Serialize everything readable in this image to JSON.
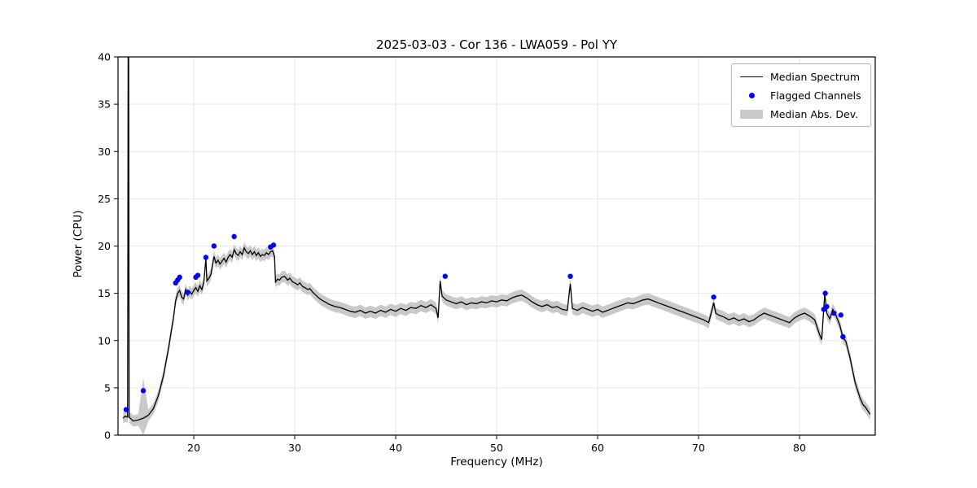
{
  "colors": {
    "line": "#000000",
    "flagged": "#0000ff",
    "band": "#bcbcbc",
    "grid": "#e9e9e9"
  },
  "chart_data": {
    "type": "line",
    "title": "2025-03-03 - Cor 136 - LWA059 - Pol YY",
    "xlabel": "Frequency (MHz)",
    "ylabel": "Power (CPU)",
    "xlim": [
      12.5,
      87.5
    ],
    "ylim": [
      0,
      40
    ],
    "xticks": [
      20,
      30,
      40,
      50,
      60,
      70,
      80
    ],
    "yticks": [
      0,
      5,
      10,
      15,
      20,
      25,
      30,
      35,
      40
    ],
    "grid": true,
    "legend_position": "upper right",
    "legend_entries": [
      {
        "label": "Median Spectrum",
        "marker": "line"
      },
      {
        "label": "Flagged Channels",
        "marker": "dot"
      },
      {
        "label": "Median Abs. Dev.",
        "marker": "band"
      }
    ],
    "series": [
      {
        "name": "Median Spectrum",
        "type": "line",
        "color": "#000000",
        "x": [
          13.0,
          13.2,
          13.45,
          13.5,
          13.55,
          13.6,
          14.0,
          14.5,
          15.0,
          15.5,
          16.0,
          16.5,
          17.0,
          17.5,
          18.0,
          18.2,
          18.4,
          18.6,
          18.8,
          19.0,
          19.2,
          19.4,
          19.6,
          19.8,
          20.0,
          20.2,
          20.4,
          20.6,
          20.8,
          21.0,
          21.2,
          21.3,
          21.5,
          21.7,
          22.0,
          22.2,
          22.4,
          22.6,
          22.8,
          23.0,
          23.2,
          23.4,
          23.6,
          23.8,
          24.0,
          24.2,
          24.4,
          24.6,
          24.8,
          25.0,
          25.2,
          25.4,
          25.6,
          25.8,
          26.0,
          26.2,
          26.4,
          26.6,
          26.8,
          27.0,
          27.2,
          27.4,
          27.6,
          27.8,
          28.0,
          28.1,
          28.3,
          28.5,
          28.7,
          29.0,
          29.3,
          29.5,
          29.8,
          30.0,
          30.3,
          30.5,
          30.8,
          31.0,
          31.3,
          31.5,
          31.8,
          32.0,
          32.3,
          32.5,
          32.8,
          33.0,
          33.3,
          33.5,
          34.0,
          34.5,
          35.0,
          35.5,
          36.0,
          36.5,
          37.0,
          37.5,
          38.0,
          38.5,
          39.0,
          39.5,
          40.0,
          40.5,
          41.0,
          41.5,
          42.0,
          42.5,
          43.0,
          43.5,
          44.0,
          44.2,
          44.4,
          44.6,
          45.0,
          45.5,
          46.0,
          46.5,
          47.0,
          47.5,
          48.0,
          48.5,
          49.0,
          49.5,
          50.0,
          50.5,
          51.0,
          51.5,
          52.0,
          52.5,
          53.0,
          53.5,
          54.0,
          54.5,
          55.0,
          55.5,
          56.0,
          56.5,
          57.0,
          57.3,
          57.5,
          58.0,
          58.5,
          59.0,
          59.5,
          60.0,
          60.5,
          61.0,
          61.5,
          62.0,
          62.5,
          63.0,
          63.5,
          64.0,
          64.5,
          65.0,
          65.5,
          66.0,
          66.5,
          67.0,
          67.5,
          68.0,
          68.5,
          69.0,
          69.5,
          70.0,
          70.5,
          71.0,
          71.3,
          71.5,
          71.7,
          72.0,
          72.5,
          73.0,
          73.5,
          74.0,
          74.5,
          75.0,
          75.5,
          76.0,
          76.5,
          77.0,
          77.5,
          78.0,
          78.5,
          79.0,
          79.5,
          80.0,
          80.5,
          81.0,
          81.5,
          82.0,
          82.2,
          82.5,
          82.7,
          83.0,
          83.3,
          83.6,
          84.0,
          84.3,
          84.6,
          85.0,
          85.5,
          86.0,
          86.3,
          86.5,
          87.0
        ],
        "y": [
          1.8,
          2.0,
          1.9,
          41,
          41,
          1.9,
          1.5,
          1.6,
          1.8,
          2.1,
          2.8,
          4.2,
          6.3,
          9.2,
          12.5,
          14.2,
          15.0,
          15.3,
          14.6,
          14.4,
          15.4,
          14.8,
          15.2,
          14.9,
          15.3,
          15.6,
          15.2,
          15.8,
          15.4,
          16.2,
          18.7,
          16.3,
          16.6,
          17.0,
          18.9,
          18.2,
          18.5,
          18.1,
          18.4,
          18.7,
          18.3,
          18.8,
          19.1,
          18.8,
          19.6,
          19.2,
          19.0,
          19.4,
          19.1,
          19.8,
          19.4,
          19.2,
          19.5,
          19.1,
          19.4,
          19.0,
          19.3,
          18.9,
          19.1,
          19.0,
          19.3,
          19.1,
          19.4,
          19.5,
          18.9,
          16.2,
          16.5,
          16.4,
          16.7,
          16.8,
          16.4,
          16.6,
          16.2,
          16.1,
          15.9,
          16.1,
          15.7,
          15.6,
          15.4,
          15.5,
          15.1,
          14.9,
          14.6,
          14.4,
          14.2,
          14.1,
          13.9,
          13.8,
          13.6,
          13.5,
          13.3,
          13.1,
          13.0,
          13.2,
          12.9,
          13.1,
          12.9,
          13.2,
          13.0,
          13.3,
          13.1,
          13.4,
          13.2,
          13.5,
          13.4,
          13.7,
          13.5,
          13.8,
          13.4,
          12.4,
          16.3,
          14.7,
          14.3,
          14.1,
          13.9,
          14.1,
          13.8,
          14.0,
          13.9,
          14.1,
          14.0,
          14.2,
          14.1,
          14.3,
          14.2,
          14.5,
          14.7,
          14.8,
          14.5,
          14.1,
          13.8,
          13.6,
          13.8,
          13.5,
          13.6,
          13.3,
          13.2,
          16.0,
          13.4,
          13.2,
          13.5,
          13.3,
          13.1,
          13.3,
          13.0,
          13.2,
          13.4,
          13.6,
          13.8,
          14.0,
          13.9,
          14.1,
          14.3,
          14.4,
          14.2,
          14.0,
          13.8,
          13.6,
          13.4,
          13.2,
          13.0,
          12.8,
          12.6,
          12.4,
          12.2,
          11.9,
          13.1,
          14.0,
          12.9,
          12.7,
          12.5,
          12.2,
          12.4,
          12.1,
          12.3,
          12.0,
          12.2,
          12.6,
          12.9,
          12.7,
          12.5,
          12.3,
          12.1,
          11.9,
          12.4,
          12.7,
          12.9,
          12.6,
          12.2,
          10.6,
          10.1,
          15.0,
          12.9,
          12.3,
          13.3,
          12.7,
          11.6,
          10.3,
          9.9,
          8.2,
          5.6,
          3.9,
          3.2,
          3.0,
          2.2
        ]
      },
      {
        "name": "Flagged Channels",
        "type": "scatter",
        "color": "#0000ff",
        "x": [
          13.3,
          15.0,
          18.2,
          18.4,
          18.6,
          19.4,
          20.2,
          20.4,
          21.2,
          22.0,
          24.0,
          27.6,
          27.9,
          44.9,
          57.3,
          71.5,
          82.4,
          82.55,
          82.7,
          83.4,
          84.1,
          84.3
        ],
        "y": [
          2.7,
          4.7,
          16.1,
          16.4,
          16.7,
          15.1,
          16.7,
          16.9,
          18.8,
          20.0,
          21.0,
          19.9,
          20.1,
          16.8,
          16.8,
          14.6,
          13.3,
          15.0,
          13.6,
          12.9,
          12.7,
          10.4
        ]
      },
      {
        "name": "Median Abs. Dev.",
        "type": "band",
        "color": "#bcbcbc",
        "mad_default": 0.6,
        "mad_overrides": [
          {
            "x": 15.0,
            "mad": 4.2
          }
        ]
      }
    ]
  }
}
